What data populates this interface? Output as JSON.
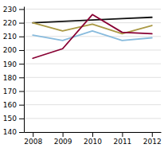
{
  "chart_data": {
    "type": "line",
    "x": [
      2008,
      2009,
      2010,
      2011,
      2012
    ],
    "series": [
      {
        "color": "#111111",
        "values": [
          220,
          221,
          222,
          223,
          224
        ]
      },
      {
        "color": "#AA9944",
        "values": [
          220,
          214,
          219,
          212,
          218
        ]
      },
      {
        "color": "#88BBDD",
        "values": [
          211,
          207,
          214,
          207,
          209
        ]
      },
      {
        "color": "#880033",
        "values": [
          194,
          201,
          226,
          213,
          212
        ]
      }
    ],
    "xlim": [
      2007.7,
      2012.3
    ],
    "xticks": [
      2008,
      2009,
      2010,
      2011,
      2012
    ],
    "ylim": [
      140,
      232
    ],
    "yticks": [
      140,
      150,
      160,
      170,
      180,
      190,
      200,
      210,
      220,
      230
    ],
    "grid": true
  }
}
